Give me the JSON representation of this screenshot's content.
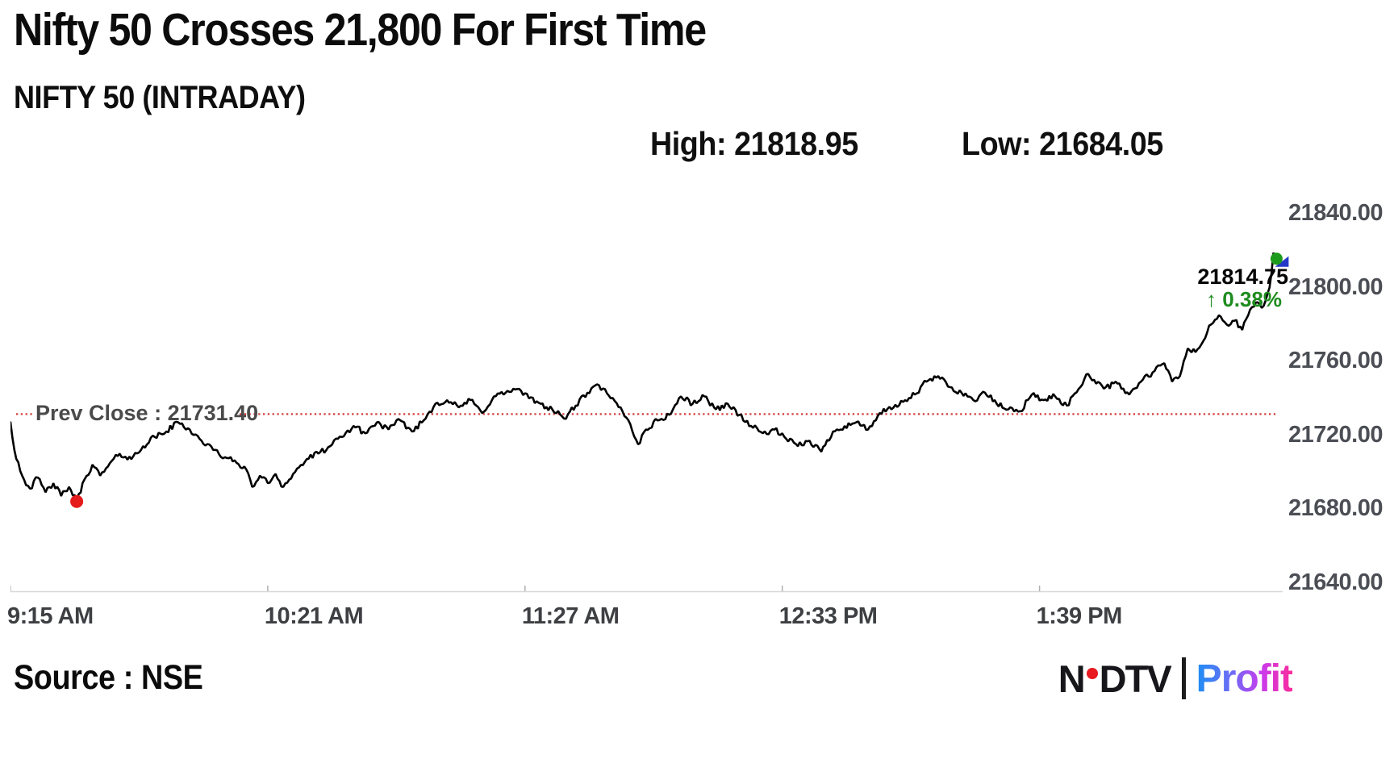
{
  "header": {
    "title": "Nifty 50 Crosses 21,800 For First Time",
    "subtitle": "NIFTY 50 (INTRADAY)",
    "high_label": "High: 21818.95",
    "low_label": "Low: 21684.05"
  },
  "footer": {
    "source": "Source : NSE"
  },
  "brand": {
    "n": "N",
    "dtv": "DTV",
    "profit": "Profit"
  },
  "chart_data": {
    "type": "line",
    "title": "NIFTY 50 (INTRADAY)",
    "symbol": "NIFTY 50",
    "high": 21818.95,
    "low": 21684.05,
    "prev_close": 21731.4,
    "prev_close_label": "Prev Close : 21731.40",
    "last": 21814.75,
    "last_label": "21814.75",
    "change_pct_label": "↑ 0.38%",
    "grid": false,
    "legend": "none",
    "y_min": 21640,
    "y_max": 21840,
    "y_ticks": [
      {
        "value": 21840,
        "label": "21840.00"
      },
      {
        "value": 21800,
        "label": "21800.00"
      },
      {
        "value": 21760,
        "label": "21760.00"
      },
      {
        "value": 21720,
        "label": "21720.00"
      },
      {
        "value": 21680,
        "label": "21680.00"
      },
      {
        "value": 21640,
        "label": "21640.00"
      }
    ],
    "x_ticks": [
      {
        "minute": 0,
        "label": "9:15 AM"
      },
      {
        "minute": 66,
        "label": "10:21 AM"
      },
      {
        "minute": 132,
        "label": "11:27 AM"
      },
      {
        "minute": 198,
        "label": "12:33 PM"
      },
      {
        "minute": 264,
        "label": "1:39 PM"
      }
    ],
    "minutes_end": 325,
    "low_marker_minute": 17,
    "noise_amp": 1.7,
    "anchors": [
      [
        0,
        21727
      ],
      [
        1,
        21712
      ],
      [
        3,
        21698
      ],
      [
        5,
        21691
      ],
      [
        7,
        21697
      ],
      [
        9,
        21689
      ],
      [
        11,
        21694
      ],
      [
        13,
        21687
      ],
      [
        15,
        21692
      ],
      [
        17,
        21684.05
      ],
      [
        19,
        21696
      ],
      [
        21,
        21704
      ],
      [
        23,
        21698
      ],
      [
        25,
        21703
      ],
      [
        28,
        21710
      ],
      [
        31,
        21707
      ],
      [
        34,
        21714
      ],
      [
        37,
        21719
      ],
      [
        40,
        21722
      ],
      [
        43,
        21727
      ],
      [
        46,
        21723
      ],
      [
        49,
        21717
      ],
      [
        52,
        21712
      ],
      [
        55,
        21708
      ],
      [
        58,
        21705
      ],
      [
        60,
        21703
      ],
      [
        62,
        21692
      ],
      [
        64,
        21698
      ],
      [
        66,
        21694
      ],
      [
        68,
        21699
      ],
      [
        70,
        21692
      ],
      [
        73,
        21700
      ],
      [
        76,
        21707
      ],
      [
        79,
        21710
      ],
      [
        82,
        21714
      ],
      [
        85,
        21719
      ],
      [
        88,
        21725
      ],
      [
        91,
        21721
      ],
      [
        94,
        21727
      ],
      [
        97,
        21723
      ],
      [
        100,
        21728
      ],
      [
        103,
        21722
      ],
      [
        106,
        21728
      ],
      [
        109,
        21737
      ],
      [
        112,
        21739
      ],
      [
        115,
        21735
      ],
      [
        118,
        21739
      ],
      [
        121,
        21732
      ],
      [
        124,
        21741
      ],
      [
        127,
        21743
      ],
      [
        130,
        21745
      ],
      [
        133,
        21740
      ],
      [
        136,
        21737
      ],
      [
        139,
        21734
      ],
      [
        142,
        21729
      ],
      [
        145,
        21736
      ],
      [
        148,
        21743
      ],
      [
        151,
        21747
      ],
      [
        154,
        21740
      ],
      [
        157,
        21733
      ],
      [
        159,
        21726
      ],
      [
        161,
        21715
      ],
      [
        163,
        21723
      ],
      [
        166,
        21728
      ],
      [
        169,
        21731
      ],
      [
        172,
        21741
      ],
      [
        175,
        21737
      ],
      [
        178,
        21741
      ],
      [
        181,
        21734
      ],
      [
        184,
        21737
      ],
      [
        187,
        21731
      ],
      [
        190,
        21725
      ],
      [
        193,
        21721
      ],
      [
        196,
        21723
      ],
      [
        199,
        21718
      ],
      [
        202,
        21714
      ],
      [
        205,
        21717
      ],
      [
        208,
        21711
      ],
      [
        211,
        21722
      ],
      [
        214,
        21725
      ],
      [
        217,
        21727
      ],
      [
        220,
        21723
      ],
      [
        223,
        21732
      ],
      [
        226,
        21734
      ],
      [
        229,
        21738
      ],
      [
        232,
        21742
      ],
      [
        235,
        21749
      ],
      [
        238,
        21752
      ],
      [
        241,
        21746
      ],
      [
        244,
        21743
      ],
      [
        247,
        21739
      ],
      [
        250,
        21743
      ],
      [
        253,
        21737
      ],
      [
        256,
        21734
      ],
      [
        259,
        21733
      ],
      [
        262,
        21742
      ],
      [
        265,
        21739
      ],
      [
        268,
        21741
      ],
      [
        271,
        21736
      ],
      [
        274,
        21745
      ],
      [
        276,
        21753
      ],
      [
        278,
        21750
      ],
      [
        281,
        21746
      ],
      [
        284,
        21748
      ],
      [
        287,
        21742
      ],
      [
        290,
        21749
      ],
      [
        293,
        21754
      ],
      [
        296,
        21759
      ],
      [
        298,
        21749
      ],
      [
        300,
        21752
      ],
      [
        302,
        21767
      ],
      [
        304,
        21765
      ],
      [
        306,
        21771
      ],
      [
        308,
        21780
      ],
      [
        310,
        21785
      ],
      [
        312,
        21780
      ],
      [
        314,
        21782
      ],
      [
        316,
        21777
      ],
      [
        318,
        21788
      ],
      [
        320,
        21792
      ],
      [
        321,
        21789
      ],
      [
        322,
        21793
      ],
      [
        323,
        21800
      ],
      [
        323.5,
        21808
      ],
      [
        324,
        21818.95
      ],
      [
        324.5,
        21813
      ],
      [
        325,
        21814.75
      ]
    ],
    "colors": {
      "line": "#000000",
      "prev_close_line": "#d43c3c",
      "low_dot": "#e51a1a",
      "marker_green": "#1c9a1c",
      "marker_blue": "#2438c8",
      "pct_green": "#1e8c1e",
      "y_axis_text": "#4b4e54",
      "x_axis_text": "#3d3f42",
      "axis_line": "#d8d8d8",
      "axis_tick": "#b0b0b0"
    }
  }
}
